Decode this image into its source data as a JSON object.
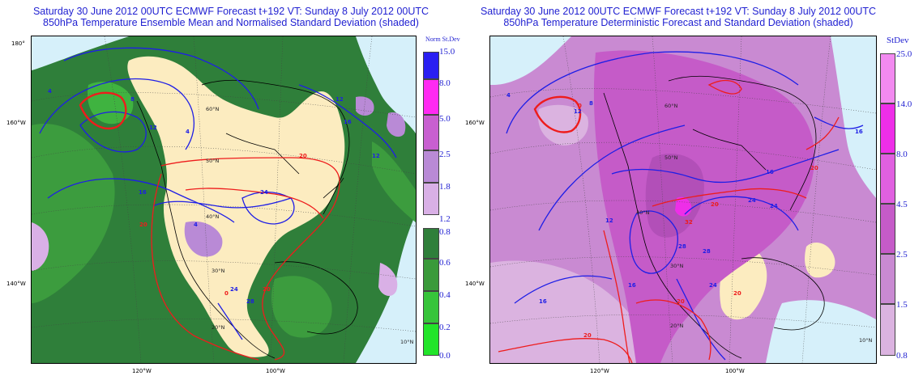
{
  "left_panel": {
    "title_line1": "Saturday 30 June 2012 00UTC ECMWF Forecast t+192  VT: Sunday 8 July 2012 00UTC",
    "title_line2": "850hPa Temperature Ensemble Mean and Normalised Standard Deviation (shaded)",
    "legend_title": "Norm St.Dev",
    "legend_ticks": [
      "15.0",
      "8.0",
      "5.0",
      "2.5",
      "1.8",
      "1.2",
      "0.8",
      "0.6",
      "0.4",
      "0.2",
      "0.0"
    ],
    "legend_colors": [
      "#2a1ff2",
      "#ff2af2",
      "#c85fd0",
      "#b98ad6",
      "#d9b0e6",
      "#2f7f3a",
      "#3a9a3a",
      "#37c43a",
      "#22e42a"
    ],
    "axis_labels": {
      "top_left": "180°",
      "mid_left": "160°W",
      "bottom_left": "140°W",
      "bottom_1": "120°W",
      "bottom_2": "100°W"
    },
    "lat_labels": {
      "l60": "60°N",
      "l50": "50°N",
      "l40": "40°N",
      "l30": "30°N",
      "l20": "20°N",
      "l10": "10°N"
    },
    "contour_labels": [
      "4",
      "8",
      "12",
      "16",
      "12",
      "16",
      "24",
      "20",
      "20",
      "24",
      "0",
      "4",
      "20",
      "28",
      "12",
      "4"
    ]
  },
  "right_panel": {
    "title_line1": "Saturday 30 June 2012 00UTC ECMWF Forecast t+192  VT: Sunday 8 July 2012 00UTC",
    "title_line2": "850hPa Temperature Deterministic Forecast and Standard Deviation (shaded)",
    "legend_title": "StDev",
    "legend_ticks": [
      "25.0",
      "14.0",
      "8.0",
      "4.5",
      "2.5",
      "1.5",
      "0.8"
    ],
    "legend_colors": [
      "#f28af0",
      "#ee2ee8",
      "#e060e0",
      "#c55bc8",
      "#c98ad2",
      "#dbb3e0"
    ],
    "axis_labels": {
      "mid_left": "160°W",
      "bottom_left": "140°W",
      "bottom_1": "120°W",
      "bottom_2": "100°W"
    },
    "lat_labels": {
      "l60": "60°N",
      "l50": "50°N",
      "l40": "40°N",
      "l30": "30°N",
      "l20": "20°N",
      "l10": "10°N"
    },
    "contour_labels": [
      "4",
      "0",
      "8",
      "12",
      "16",
      "16",
      "20",
      "16",
      "24",
      "20",
      "28",
      "28",
      "24",
      "20",
      "16",
      "12",
      "20",
      "20",
      "24",
      "32"
    ]
  },
  "colors": {
    "land_tan": "#fcecc0",
    "sea": "#d6f0fa",
    "contour_blue": "#1e1ee6",
    "contour_red": "#ee1c1c",
    "title_blue": "#1f1fd1"
  }
}
